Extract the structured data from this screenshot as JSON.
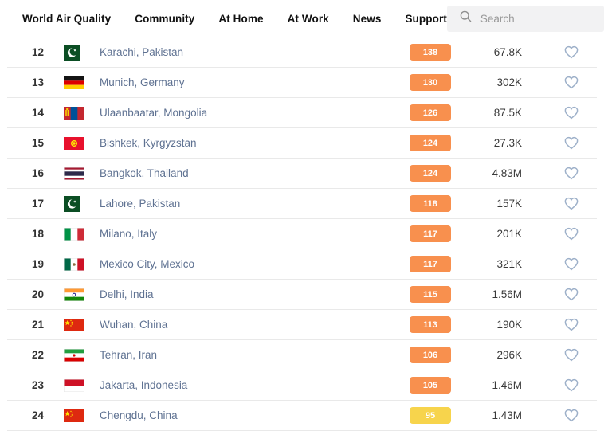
{
  "nav": {
    "items": [
      {
        "id": "world-air-quality",
        "label": "World Air Quality"
      },
      {
        "id": "community",
        "label": "Community"
      },
      {
        "id": "at-home",
        "label": "At Home"
      },
      {
        "id": "at-work",
        "label": "At Work"
      },
      {
        "id": "news",
        "label": "News"
      },
      {
        "id": "support",
        "label": "Support"
      }
    ],
    "search_placeholder": "Search"
  },
  "colors": {
    "aqi_orange": "#f8904e",
    "aqi_yellow": "#f7d44c",
    "city_link": "#5f7292",
    "heart_stroke": "#9db0c9"
  },
  "rows": [
    {
      "rank": "12",
      "city": "Karachi, Pakistan",
      "flag": "pk",
      "aqi": "138",
      "level": "orange",
      "followers": "67.8K"
    },
    {
      "rank": "13",
      "city": "Munich, Germany",
      "flag": "de",
      "aqi": "130",
      "level": "orange",
      "followers": "302K"
    },
    {
      "rank": "14",
      "city": "Ulaanbaatar, Mongolia",
      "flag": "mn",
      "aqi": "126",
      "level": "orange",
      "followers": "87.5K"
    },
    {
      "rank": "15",
      "city": "Bishkek, Kyrgyzstan",
      "flag": "kg",
      "aqi": "124",
      "level": "orange",
      "followers": "27.3K"
    },
    {
      "rank": "16",
      "city": "Bangkok, Thailand",
      "flag": "th",
      "aqi": "124",
      "level": "orange",
      "followers": "4.83M"
    },
    {
      "rank": "17",
      "city": "Lahore, Pakistan",
      "flag": "pk",
      "aqi": "118",
      "level": "orange",
      "followers": "157K"
    },
    {
      "rank": "18",
      "city": "Milano, Italy",
      "flag": "it",
      "aqi": "117",
      "level": "orange",
      "followers": "201K"
    },
    {
      "rank": "19",
      "city": "Mexico City, Mexico",
      "flag": "mx",
      "aqi": "117",
      "level": "orange",
      "followers": "321K"
    },
    {
      "rank": "20",
      "city": "Delhi, India",
      "flag": "in",
      "aqi": "115",
      "level": "orange",
      "followers": "1.56M"
    },
    {
      "rank": "21",
      "city": "Wuhan, China",
      "flag": "cn",
      "aqi": "113",
      "level": "orange",
      "followers": "190K"
    },
    {
      "rank": "22",
      "city": "Tehran, Iran",
      "flag": "ir",
      "aqi": "106",
      "level": "orange",
      "followers": "296K"
    },
    {
      "rank": "23",
      "city": "Jakarta, Indonesia",
      "flag": "id",
      "aqi": "105",
      "level": "orange",
      "followers": "1.46M"
    },
    {
      "rank": "24",
      "city": "Chengdu, China",
      "flag": "cn",
      "aqi": "95",
      "level": "yellow",
      "followers": "1.43M"
    }
  ]
}
